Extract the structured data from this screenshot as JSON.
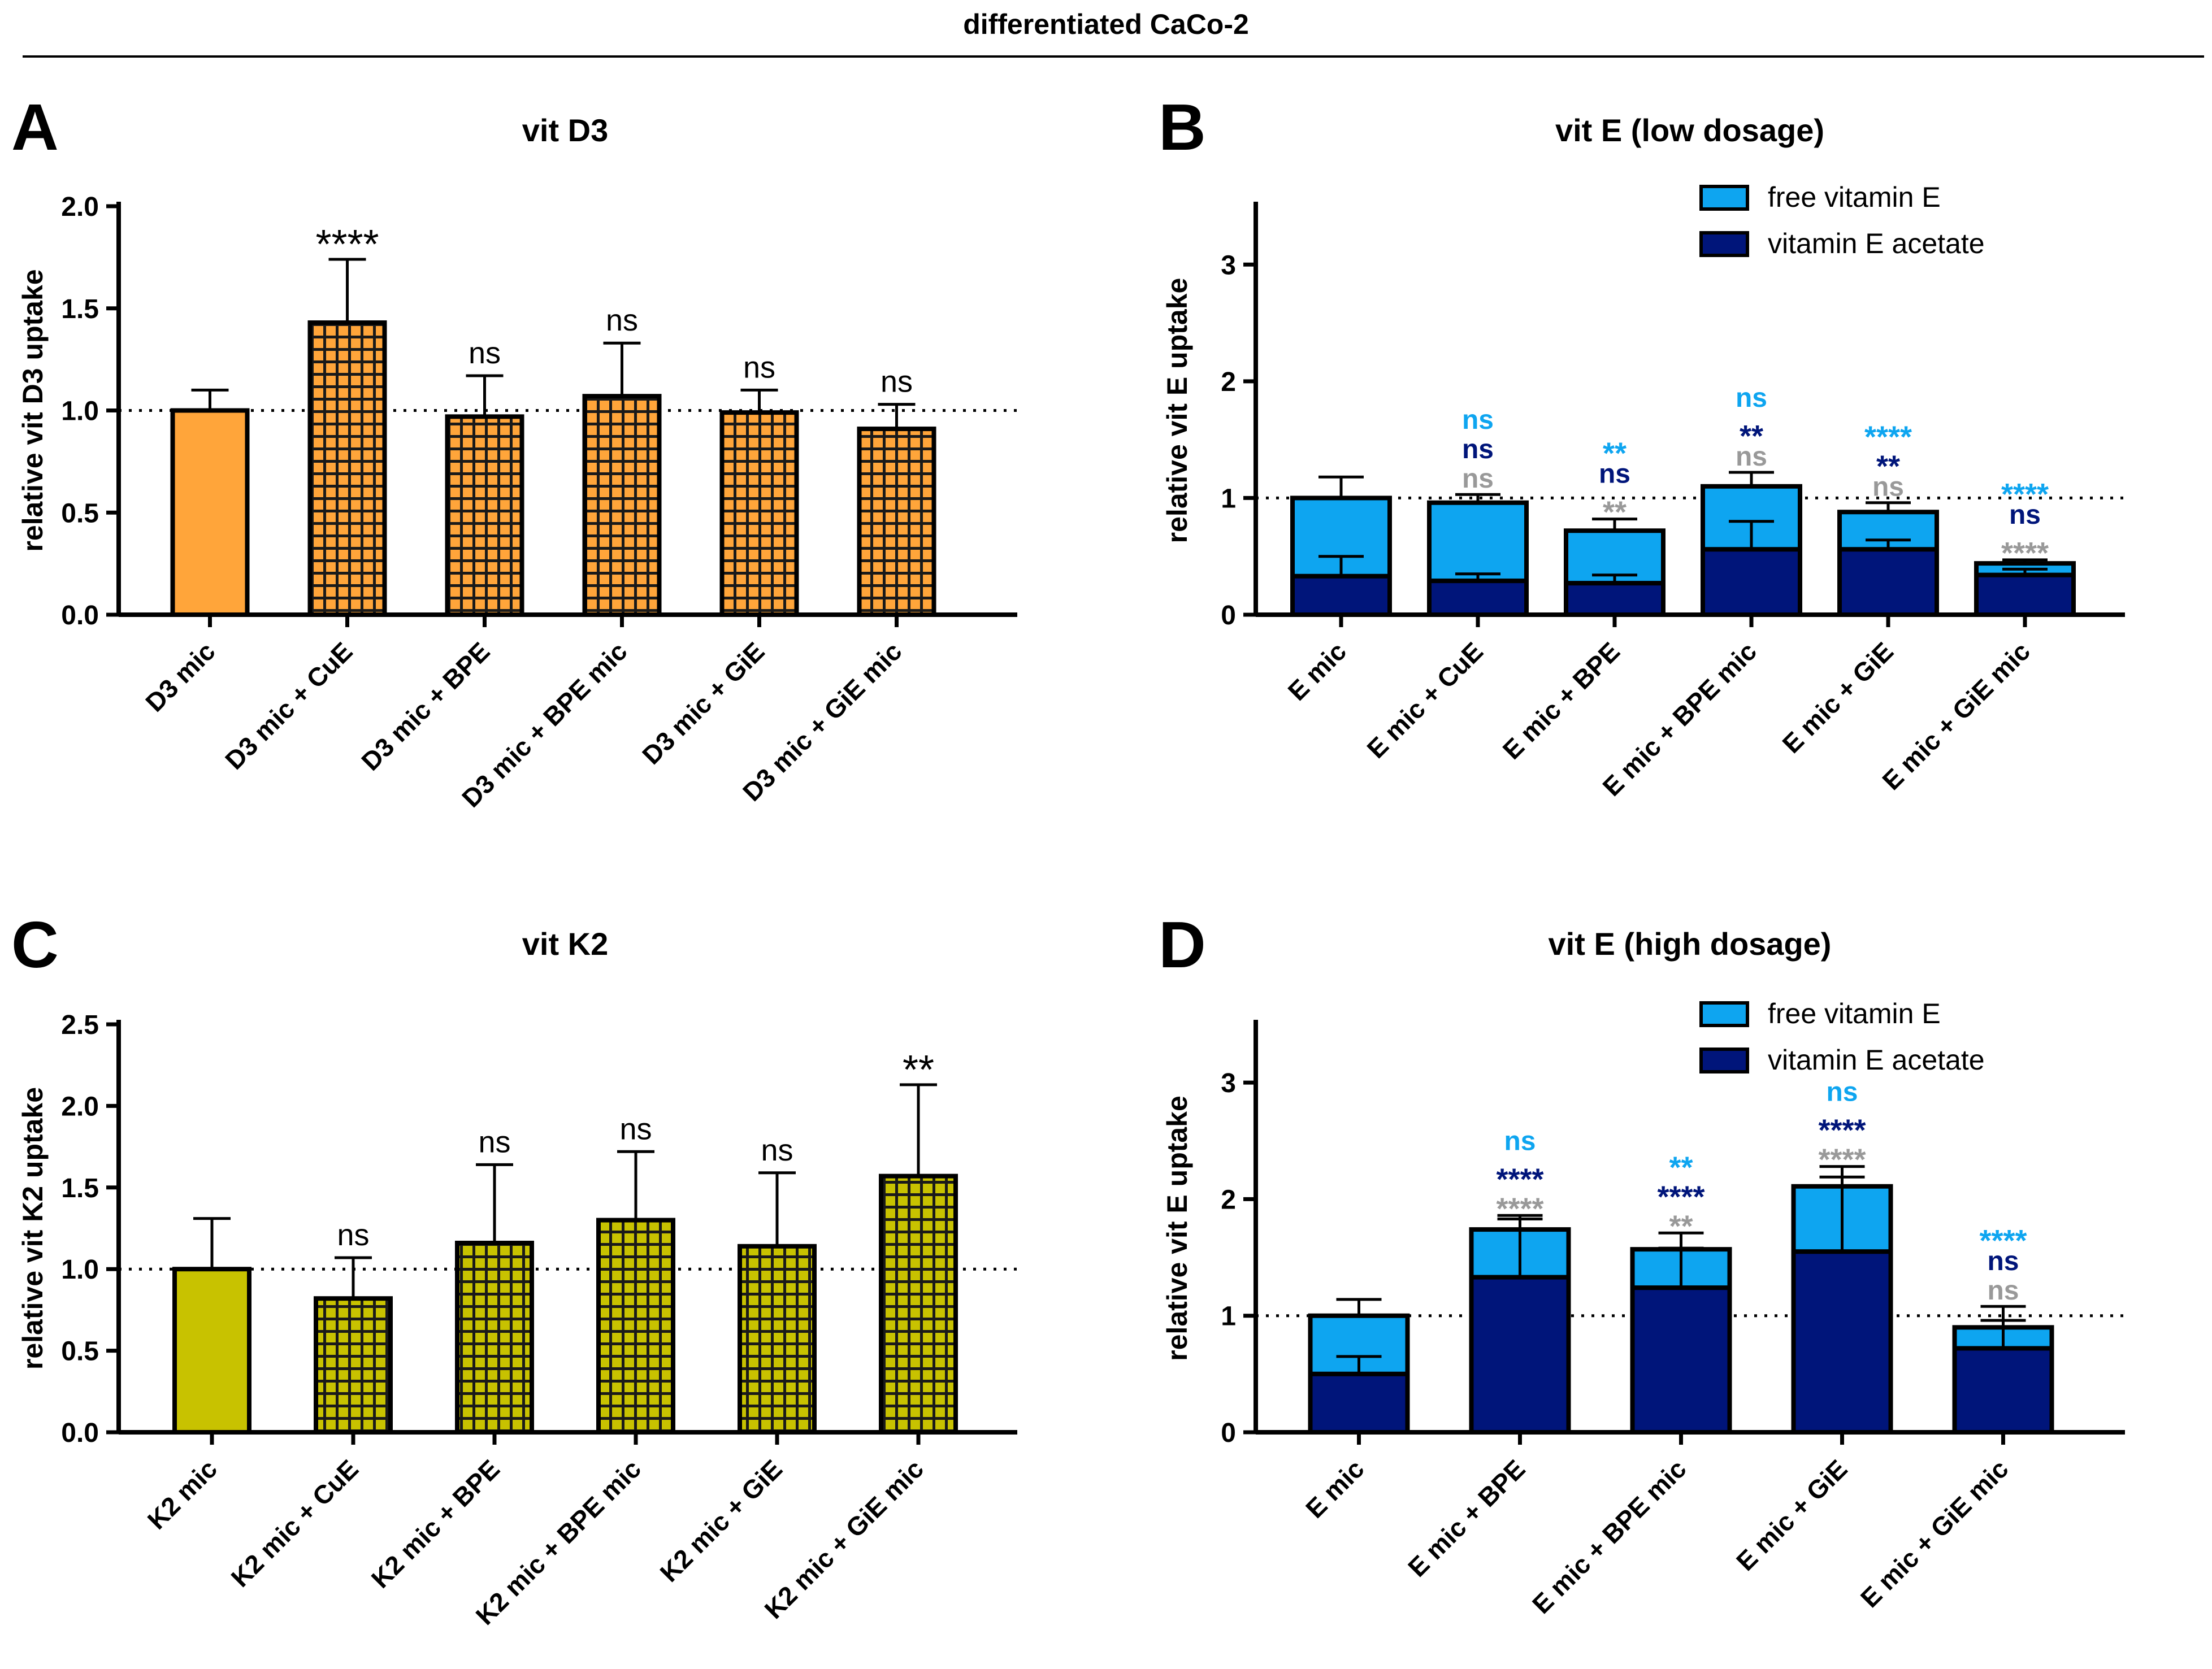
{
  "figure_title": "differentiated CaCo-2",
  "colors": {
    "orange": "#FFA53A",
    "olive": "#C8C200",
    "light_blue": "#0EA5F0",
    "navy": "#00157A",
    "gray": "#999999",
    "black": "#000000"
  },
  "chart_data": [
    {
      "panel": "A",
      "type": "bar",
      "title": "vit D3",
      "ylabel": "relative vit D3 uptake",
      "xlabel": "",
      "ylim": [
        0,
        2.0
      ],
      "yticks": [
        0,
        0.5,
        1.0,
        1.5,
        2.0
      ],
      "ytick_labels": [
        "0.0",
        "0.5",
        "1.0",
        "1.5",
        "2.0"
      ],
      "reference_line": 1.0,
      "categories": [
        "D3 mic",
        "D3 mic + CuE",
        "D3 mic + BPE",
        "D3 mic + BPE mic",
        "D3 mic + GiE",
        "D3 mic + GiE mic"
      ],
      "values": [
        1.0,
        1.43,
        0.97,
        1.07,
        0.99,
        0.91
      ],
      "errors": [
        0.1,
        0.31,
        0.2,
        0.26,
        0.11,
        0.12
      ],
      "significance": [
        "",
        "****",
        "ns",
        "ns",
        "ns",
        "ns"
      ],
      "pattern": [
        false,
        true,
        true,
        true,
        true,
        true
      ],
      "color": "orange"
    },
    {
      "panel": "B",
      "type": "stacked-bar",
      "title": "vit E (low dosage)",
      "ylabel": "relative vit E uptake",
      "xlabel": "",
      "ylim": [
        0,
        3.5
      ],
      "yticks": [
        0,
        1,
        2,
        3
      ],
      "ytick_labels": [
        "0",
        "1",
        "2",
        "3"
      ],
      "reference_line": 1.0,
      "legend": [
        "free vitamin E",
        "vitamin E acetate"
      ],
      "legend_position": "top-right",
      "categories": [
        "E mic",
        "E mic + CuE",
        "E mic + BPE",
        "E mic + BPE mic",
        "E mic + GiE",
        "E mic + GiE mic"
      ],
      "series": [
        {
          "name": "vitamin E acetate",
          "color": "navy",
          "values": [
            0.33,
            0.29,
            0.27,
            0.56,
            0.56,
            0.34
          ],
          "errors": [
            0.17,
            0.06,
            0.07,
            0.24,
            0.08,
            0.05
          ]
        },
        {
          "name": "free vitamin E",
          "color": "light_blue",
          "values": [
            0.67,
            0.67,
            0.45,
            0.54,
            0.32,
            0.1
          ],
          "errors": [
            0.18,
            0.07,
            0.1,
            0.12,
            0.08,
            0.03
          ]
        }
      ],
      "significance": [
        [],
        [
          {
            "text": "ns",
            "color": "light_blue"
          },
          {
            "text": "ns",
            "color": "navy"
          },
          {
            "text": "ns",
            "color": "gray"
          }
        ],
        [
          {
            "text": "**",
            "color": "light_blue"
          },
          {
            "text": "ns",
            "color": "navy"
          },
          {
            "text": "**",
            "color": "gray"
          }
        ],
        [
          {
            "text": "ns",
            "color": "light_blue"
          },
          {
            "text": "**",
            "color": "navy"
          },
          {
            "text": "ns",
            "color": "gray"
          }
        ],
        [
          {
            "text": "****",
            "color": "light_blue"
          },
          {
            "text": "**",
            "color": "navy"
          },
          {
            "text": "ns",
            "color": "gray"
          }
        ],
        [
          {
            "text": "****",
            "color": "light_blue"
          },
          {
            "text": "ns",
            "color": "navy"
          },
          {
            "text": "****",
            "color": "gray"
          }
        ]
      ]
    },
    {
      "panel": "C",
      "type": "bar",
      "title": "vit K2",
      "ylabel": "relative vit K2 uptake",
      "xlabel": "",
      "ylim": [
        0,
        2.5
      ],
      "yticks": [
        0,
        0.5,
        1.0,
        1.5,
        2.0,
        2.5
      ],
      "ytick_labels": [
        "0.0",
        "0.5",
        "1.0",
        "1.5",
        "2.0",
        "2.5"
      ],
      "reference_line": 1.0,
      "categories": [
        "K2 mic",
        "K2 mic + CuE",
        "K2 mic + BPE",
        "K2 mic + BPE mic",
        "K2 mic + GiE",
        "K2 mic + GiE mic"
      ],
      "values": [
        1.0,
        0.82,
        1.16,
        1.3,
        1.14,
        1.57
      ],
      "errors": [
        0.31,
        0.25,
        0.48,
        0.42,
        0.45,
        0.56
      ],
      "significance": [
        "",
        "ns",
        "ns",
        "ns",
        "ns",
        "**"
      ],
      "pattern": [
        false,
        true,
        true,
        true,
        true,
        true
      ],
      "color": "olive"
    },
    {
      "panel": "D",
      "type": "stacked-bar",
      "title": "vit E (high dosage)",
      "ylabel": "relative vit E uptake",
      "xlabel": "",
      "ylim": [
        0,
        3.5
      ],
      "yticks": [
        0,
        1,
        2,
        3
      ],
      "ytick_labels": [
        "0",
        "1",
        "2",
        "3"
      ],
      "reference_line": 1.0,
      "legend": [
        "free vitamin E",
        "vitamin E acetate"
      ],
      "legend_position": "top-right",
      "categories": [
        "E mic",
        "E mic + BPE",
        "E mic + BPE mic",
        "E mic + GiE",
        "E mic + GiE mic"
      ],
      "series": [
        {
          "name": "vitamin E acetate",
          "color": "navy",
          "values": [
            0.5,
            1.33,
            1.24,
            1.55,
            0.72
          ],
          "errors": [
            0.15,
            0.5,
            0.34,
            0.64,
            0.24
          ]
        },
        {
          "name": "free vitamin E",
          "color": "light_blue",
          "values": [
            0.5,
            0.41,
            0.33,
            0.56,
            0.18
          ],
          "errors": [
            0.14,
            0.12,
            0.14,
            0.17,
            0.18
          ]
        }
      ],
      "significance": [
        [],
        [
          {
            "text": "ns",
            "color": "light_blue"
          },
          {
            "text": "****",
            "color": "navy"
          },
          {
            "text": "****",
            "color": "gray"
          }
        ],
        [
          {
            "text": "**",
            "color": "light_blue"
          },
          {
            "text": "****",
            "color": "navy"
          },
          {
            "text": "**",
            "color": "gray"
          }
        ],
        [
          {
            "text": "ns",
            "color": "light_blue"
          },
          {
            "text": "****",
            "color": "navy"
          },
          {
            "text": "****",
            "color": "gray"
          }
        ],
        [
          {
            "text": "****",
            "color": "light_blue"
          },
          {
            "text": "ns",
            "color": "navy"
          },
          {
            "text": "ns",
            "color": "gray"
          }
        ]
      ]
    }
  ]
}
